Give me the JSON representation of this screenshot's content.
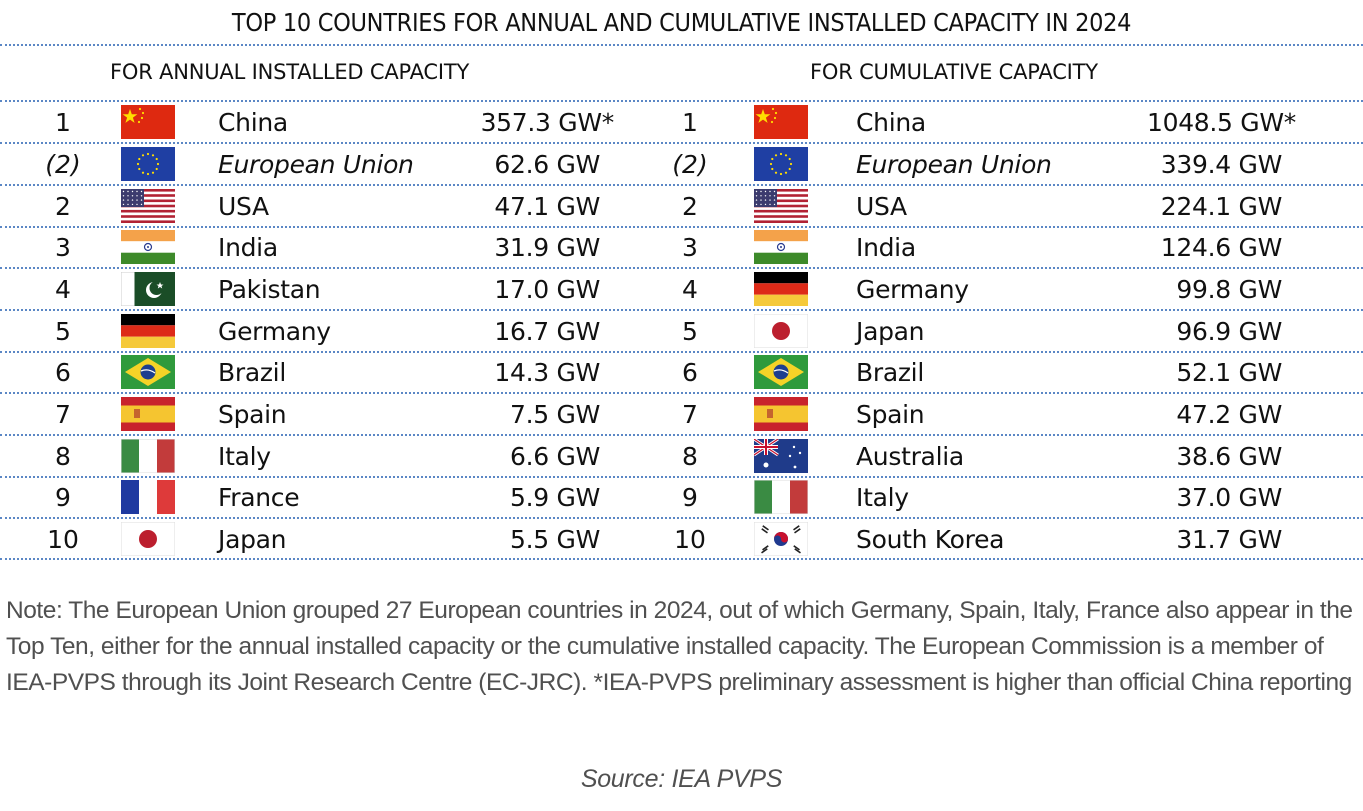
{
  "title": "TOP 10 COUNTRIES FOR ANNUAL AND CUMULATIVE INSTALLED CAPACITY IN 2024",
  "annual": {
    "heading": "FOR ANNUAL INSTALLED CAPACITY",
    "rows": [
      {
        "rank": "1",
        "flag": "china-flag",
        "country": "China",
        "value": "357.3 GW*",
        "italic": false
      },
      {
        "rank": "(2)",
        "flag": "eu-flag",
        "country": "European Union",
        "value": "62.6 GW",
        "italic": true
      },
      {
        "rank": "2",
        "flag": "usa-flag",
        "country": "USA",
        "value": "47.1 GW",
        "italic": false
      },
      {
        "rank": "3",
        "flag": "india-flag",
        "country": "India",
        "value": "31.9 GW",
        "italic": false
      },
      {
        "rank": "4",
        "flag": "pakistan-flag",
        "country": "Pakistan",
        "value": "17.0 GW",
        "italic": false
      },
      {
        "rank": "5",
        "flag": "germany-flag",
        "country": "Germany",
        "value": "16.7 GW",
        "italic": false
      },
      {
        "rank": "6",
        "flag": "brazil-flag",
        "country": "Brazil",
        "value": "14.3 GW",
        "italic": false
      },
      {
        "rank": "7",
        "flag": "spain-flag",
        "country": "Spain",
        "value": "7.5 GW",
        "italic": false
      },
      {
        "rank": "8",
        "flag": "italy-flag",
        "country": "Italy",
        "value": "6.6 GW",
        "italic": false
      },
      {
        "rank": "9",
        "flag": "france-flag",
        "country": "France",
        "value": "5.9 GW",
        "italic": false
      },
      {
        "rank": "10",
        "flag": "japan-flag",
        "country": "Japan",
        "value": "5.5 GW",
        "italic": false
      }
    ]
  },
  "cumulative": {
    "heading": "FOR CUMULATIVE CAPACITY",
    "rows": [
      {
        "rank": "1",
        "flag": "china-flag",
        "country": "China",
        "value": "1048.5 GW*",
        "italic": false
      },
      {
        "rank": "(2)",
        "flag": "eu-flag",
        "country": "European Union",
        "value": "339.4 GW",
        "italic": true
      },
      {
        "rank": "2",
        "flag": "usa-flag",
        "country": "USA",
        "value": "224.1 GW",
        "italic": false
      },
      {
        "rank": "3",
        "flag": "india-flag",
        "country": "India",
        "value": "124.6 GW",
        "italic": false
      },
      {
        "rank": "4",
        "flag": "germany-flag",
        "country": "Germany",
        "value": "99.8 GW",
        "italic": false
      },
      {
        "rank": "5",
        "flag": "japan-flag",
        "country": "Japan",
        "value": "96.9 GW",
        "italic": false
      },
      {
        "rank": "6",
        "flag": "brazil-flag",
        "country": "Brazil",
        "value": "52.1 GW",
        "italic": false
      },
      {
        "rank": "7",
        "flag": "spain-flag",
        "country": "Spain",
        "value": "47.2 GW",
        "italic": false
      },
      {
        "rank": "8",
        "flag": "australia-flag",
        "country": "Australia",
        "value": "38.6 GW",
        "italic": false
      },
      {
        "rank": "9",
        "flag": "italy-flag",
        "country": "Italy",
        "value": "37.0 GW",
        "italic": false
      },
      {
        "rank": "10",
        "flag": "south-korea-flag",
        "country": "South Korea",
        "value": "31.7 GW",
        "italic": false
      }
    ]
  },
  "note": "Note: The European Union grouped 27 European countries in 2024, out of which Germany, Spain, Italy, France also appear in the Top Ten, either for the annual installed capacity or the cumulative installed capacity. The European Commission is a member of IEA-PVPS through its Joint Research Centre (EC-JRC). *IEA-PVPS preliminary assessment is higher than official China reporting",
  "source": "Source: IEA PVPS",
  "colors": {
    "divider": "#5b87c5",
    "note_text": "#505050"
  }
}
